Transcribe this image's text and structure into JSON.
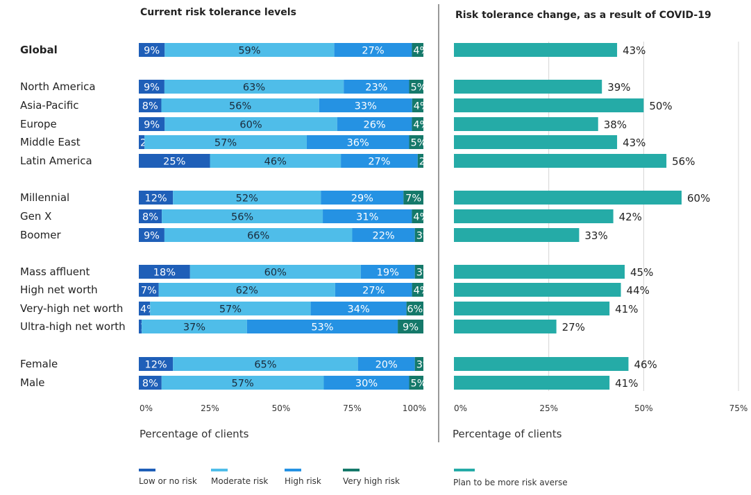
{
  "chart_data": [
    {
      "type": "bar",
      "orientation": "horizontal",
      "stacked": true,
      "title": "Current risk tolerance levels",
      "xlabel": "Percentage of clients",
      "xlim": [
        0,
        100
      ],
      "xticks": [
        "0%",
        "25%",
        "50%",
        "75%",
        "100%"
      ],
      "categories": [
        "Global",
        "North America",
        "Asia-Pacific",
        "Europe",
        "Middle East",
        "Latin America",
        "Millennial",
        "Gen X",
        "Boomer",
        "Mass affluent",
        "High net worth",
        "Very-high net worth",
        "Ultra-high net worth",
        "Female",
        "Male"
      ],
      "series": [
        {
          "name": "Low or no risk",
          "color": "#1f5fb8",
          "values": [
            9,
            9,
            8,
            9,
            2,
            25,
            12,
            8,
            9,
            18,
            7,
            4,
            1,
            12,
            8
          ]
        },
        {
          "name": "Moderate risk",
          "color": "#4fbde9",
          "values": [
            59,
            63,
            56,
            60,
            57,
            46,
            52,
            56,
            66,
            60,
            62,
            57,
            37,
            65,
            57
          ]
        },
        {
          "name": "High risk",
          "color": "#2592e3",
          "values": [
            27,
            23,
            33,
            26,
            36,
            27,
            29,
            31,
            22,
            19,
            27,
            34,
            53,
            20,
            30
          ]
        },
        {
          "name": "Very high risk",
          "color": "#15796a",
          "values": [
            4,
            5,
            4,
            4,
            5,
            2,
            7,
            4,
            3,
            3,
            4,
            6,
            9,
            3,
            5
          ]
        }
      ]
    },
    {
      "type": "bar",
      "orientation": "horizontal",
      "title": "Risk tolerance change, as a result of COVID-19",
      "xlabel": "Percentage of clients",
      "xlim": [
        0,
        75
      ],
      "xticks": [
        "0%",
        "25%",
        "50%",
        "75%"
      ],
      "grid": true,
      "categories": [
        "Global",
        "North America",
        "Asia-Pacific",
        "Europe",
        "Middle East",
        "Latin America",
        "Millennial",
        "Gen X",
        "Boomer",
        "Mass affluent",
        "High net worth",
        "Very-high net worth",
        "Ultra-high net worth",
        "Female",
        "Male"
      ],
      "series": [
        {
          "name": "Plan to be more risk averse",
          "color": "#25aba7",
          "values": [
            43,
            39,
            50,
            38,
            43,
            56,
            60,
            42,
            33,
            45,
            44,
            41,
            27,
            46,
            41
          ]
        }
      ]
    }
  ]
}
